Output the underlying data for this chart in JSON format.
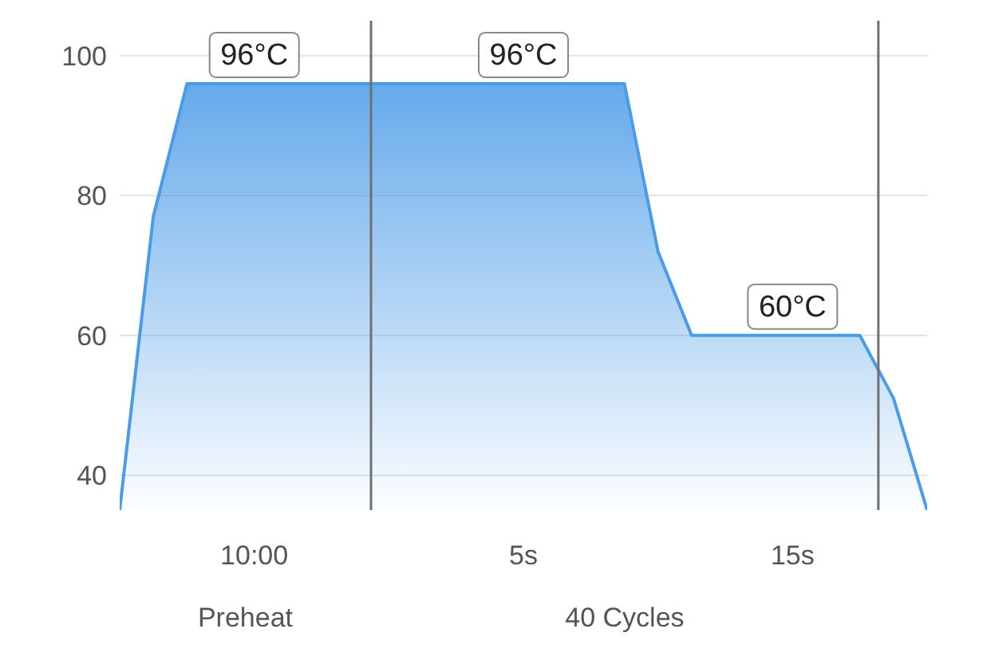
{
  "chart_data": {
    "type": "area",
    "categories": [
      null,
      null,
      null,
      null,
      "10:00",
      null,
      null,
      null,
      null,
      null,
      null,
      null,
      "5s",
      null,
      null,
      null,
      null,
      null,
      null,
      null,
      "15s",
      null,
      null,
      null,
      null
    ],
    "series": [
      {
        "color": "#4a9be8",
        "values": [
          35,
          77,
          96,
          96,
          96,
          96,
          96,
          96,
          96,
          96,
          96,
          96,
          96,
          96,
          96,
          96,
          72,
          60,
          60,
          60,
          60,
          60,
          60,
          51,
          35
        ],
        "value_labels": [
          null,
          null,
          null,
          null,
          "96°C",
          null,
          null,
          null,
          null,
          null,
          null,
          null,
          "96°C",
          null,
          null,
          null,
          null,
          null,
          null,
          null,
          "60°C",
          null,
          null,
          null,
          null
        ]
      }
    ],
    "ylim": [
      35,
      105
    ],
    "yticks": [
      40,
      60,
      80,
      100
    ],
    "grid": "y",
    "marker": "none",
    "annotations": [
      "Preheat",
      "40 Cycles"
    ]
  }
}
